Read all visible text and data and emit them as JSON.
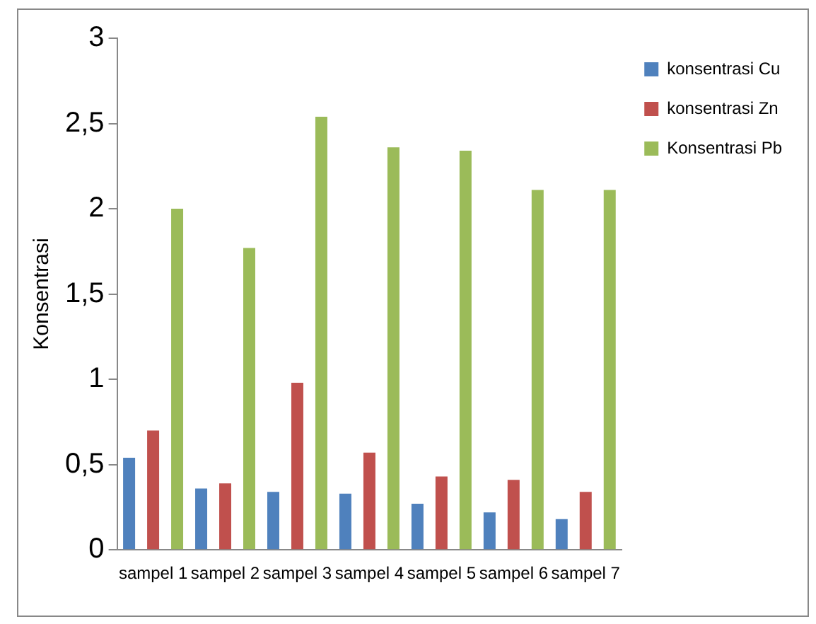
{
  "chart_data": {
    "type": "bar",
    "ylabel": "Konsentrasi",
    "categories": [
      "sampel 1",
      "sampel 2",
      "sampel 3",
      "sampel 4",
      "sampel 5",
      "sampel 6",
      "sampel 7"
    ],
    "series": [
      {
        "name": "konsentrasi Cu",
        "color": "#4f81bd",
        "values": [
          0.54,
          0.36,
          0.34,
          0.33,
          0.27,
          0.22,
          0.18
        ]
      },
      {
        "name": "konsentrasi Zn",
        "color": "#c0504d",
        "values": [
          0.7,
          0.39,
          0.98,
          0.57,
          0.43,
          0.41,
          0.34
        ]
      },
      {
        "name": "Konsentrasi Pb",
        "color": "#9bbb59",
        "values": [
          2.0,
          1.77,
          2.54,
          2.36,
          2.34,
          2.11,
          2.11
        ]
      }
    ],
    "ylim": [
      0,
      3
    ],
    "yticks": [
      0,
      {
        "value": 0.5,
        "label": "0,5"
      },
      1,
      {
        "value": 1.5,
        "label": "1,5"
      },
      2,
      {
        "value": 2.5,
        "label": "2,5"
      },
      3
    ],
    "grid": false,
    "legend": "top right"
  }
}
